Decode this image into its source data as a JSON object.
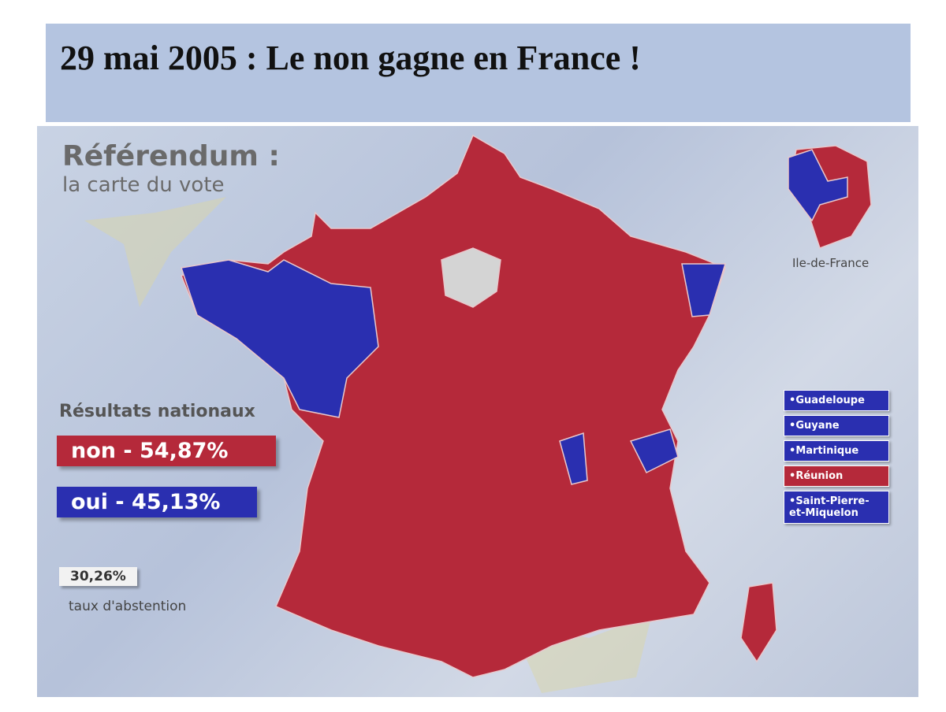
{
  "header": {
    "title": "29 mai 2005 : Le non gagne en France !"
  },
  "map": {
    "title": "Référendum :",
    "subtitle": "la carte du vote",
    "inset_label": "Ile-de-France",
    "results": {
      "heading": "Résultats nationaux",
      "non": "non - 54,87%",
      "oui": "oui - 45,13%",
      "non_color": "#b5293a",
      "oui_color": "#2a2fb0",
      "abstention": "30,26%",
      "abstention_label": "taux d'abstention"
    },
    "legend": [
      {
        "label": "Guadeloupe",
        "color": "#2a2fb0"
      },
      {
        "label": "Guyane",
        "color": "#2a2fb0"
      },
      {
        "label": "Martinique",
        "color": "#2a2fb0"
      },
      {
        "label": "Réunion",
        "color": "#b5293a"
      },
      {
        "label": "Saint-Pierre-et-Miquelon",
        "color": "#2a2fb0"
      }
    ]
  }
}
